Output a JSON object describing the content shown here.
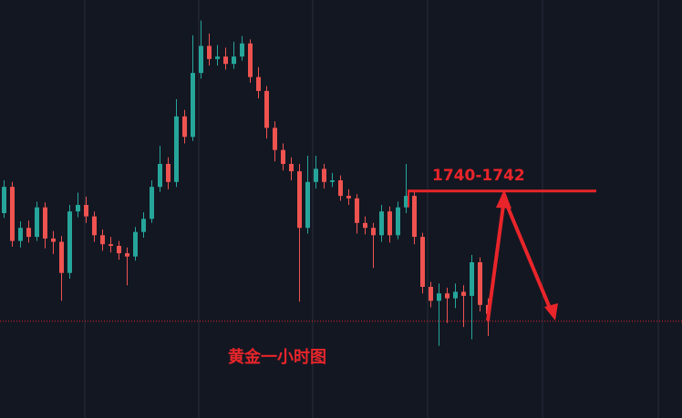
{
  "chart_data": {
    "type": "candlestick",
    "title": "黄金一小时图",
    "annotation": "1740-1742",
    "categories": [
      null,
      null,
      null,
      null,
      null,
      null,
      null,
      null,
      null,
      null,
      null,
      null,
      null,
      null,
      null,
      null,
      null,
      null,
      null,
      null,
      null,
      null,
      null,
      null,
      null,
      null,
      null,
      null,
      null,
      null,
      null,
      null,
      null,
      null,
      null,
      null,
      null,
      null,
      null,
      null,
      null,
      null,
      null,
      null,
      null,
      null,
      null,
      null,
      null,
      null,
      null,
      null,
      null,
      null,
      null,
      null,
      null,
      null,
      null,
      null
    ],
    "open": [
      1738.0,
      1741.2,
      1734.6,
      1736.2,
      1735.1,
      1738.7,
      1734.9,
      1734.5,
      1730.7,
      1738.2,
      1739.0,
      1737.6,
      1735.3,
      1734.2,
      1734.0,
      1733.1,
      1732.7,
      1735.7,
      1737.3,
      1741.2,
      1744.0,
      1741.8,
      1749.8,
      1747.3,
      1755.1,
      1758.4,
      1756.8,
      1757.1,
      1756.2,
      1757.1,
      1758.7,
      1754.6,
      1752.9,
      1748.4,
      1745.7,
      1744.0,
      1743.1,
      1736.2,
      1741.8,
      1743.4,
      1741.8,
      1742.0,
      1740.1,
      1739.8,
      1736.8,
      1736.2,
      1735.3,
      1738.2,
      1735.3,
      1738.7,
      1740.1,
      1735.1,
      1729.0,
      1727.3,
      1728.2,
      1727.6,
      1728.4,
      1727.9,
      1732.0,
      1726.8
    ],
    "high": [
      1742.0,
      1741.8,
      1737.0,
      1737.1,
      1739.4,
      1739.3,
      1735.8,
      1735.2,
      1739.0,
      1740.5,
      1740.0,
      1738.2,
      1736.0,
      1735.1,
      1734.6,
      1733.8,
      1736.3,
      1738.1,
      1742.0,
      1746.2,
      1744.8,
      1751.9,
      1750.6,
      1759.7,
      1761.5,
      1759.9,
      1758.5,
      1758.2,
      1758.9,
      1759.6,
      1759.2,
      1755.8,
      1753.5,
      1749.2,
      1746.5,
      1744.8,
      1744.0,
      1745.0,
      1745.0,
      1744.0,
      1742.9,
      1742.6,
      1740.9,
      1740.3,
      1737.6,
      1736.8,
      1739.0,
      1738.8,
      1739.4,
      1744.0,
      1740.8,
      1735.6,
      1729.6,
      1729.4,
      1728.9,
      1729.4,
      1729.2,
      1732.9,
      1732.6,
      1727.6
    ],
    "low": [
      1737.4,
      1733.9,
      1733.8,
      1734.4,
      1734.6,
      1733.7,
      1733.0,
      1727.3,
      1730.0,
      1737.5,
      1736.8,
      1734.5,
      1733.4,
      1733.2,
      1732.3,
      1729.2,
      1732.2,
      1735.0,
      1736.8,
      1740.6,
      1740.9,
      1741.2,
      1746.5,
      1746.8,
      1754.4,
      1756.0,
      1756.0,
      1755.5,
      1755.6,
      1756.6,
      1753.9,
      1752.0,
      1747.1,
      1744.3,
      1743.2,
      1742.0,
      1727.2,
      1735.5,
      1741.0,
      1741.0,
      1741.2,
      1739.5,
      1739.0,
      1735.5,
      1735.4,
      1731.3,
      1734.5,
      1734.4,
      1734.8,
      1738.0,
      1734.2,
      1728.2,
      1726.5,
      1721.8,
      1724.6,
      1726.4,
      1724.1,
      1722.6,
      1726.0,
      1723.0
    ],
    "close": [
      1741.2,
      1734.6,
      1736.2,
      1735.1,
      1738.7,
      1734.9,
      1734.5,
      1730.7,
      1738.2,
      1739.0,
      1737.6,
      1735.3,
      1734.2,
      1734.0,
      1733.1,
      1732.7,
      1735.7,
      1737.3,
      1741.2,
      1744.0,
      1741.8,
      1749.8,
      1747.3,
      1755.1,
      1758.4,
      1756.8,
      1757.1,
      1756.2,
      1757.1,
      1758.7,
      1754.6,
      1752.9,
      1748.4,
      1745.7,
      1744.0,
      1743.1,
      1736.2,
      1741.8,
      1743.4,
      1741.8,
      1742.0,
      1740.1,
      1739.8,
      1736.8,
      1736.2,
      1735.3,
      1738.2,
      1735.3,
      1738.7,
      1740.1,
      1735.1,
      1729.0,
      1727.3,
      1728.2,
      1727.6,
      1728.4,
      1727.9,
      1732.0,
      1726.8,
      1725.7
    ],
    "up_color": "#26a69a",
    "down_color": "#ef5350",
    "annotation_color": "#e8252a",
    "ylim": [
      1713,
      1764
    ],
    "reference_line": 1724.8,
    "target_line": 1740.7
  }
}
